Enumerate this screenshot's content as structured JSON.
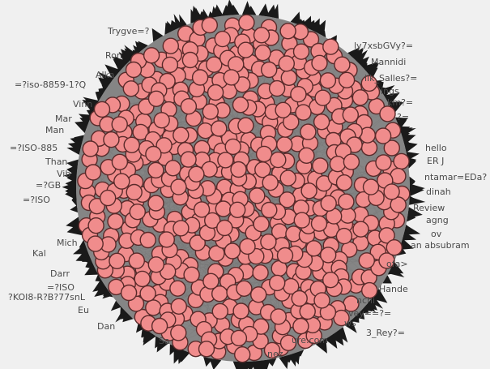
{
  "graph": {
    "title": "",
    "colors": {
      "background": "#f0f0f0",
      "node_fill": "#f08c8c",
      "node_stroke": "#5a2a2a",
      "edge": "#777777",
      "spike": "#1a1a1a",
      "label": "#4a4a4a"
    },
    "labels": [
      "Trygve=?",
      "Ron",
      "Alka",
      "=?iso-8859-1?Q",
      "Vinn",
      "Mar",
      "Man",
      "=?ISO-885",
      "Than",
      "Vib",
      "=?GB",
      "=?ISO",
      "Mich",
      "Kal",
      "Darr",
      "=?ISO",
      "?KOI8-R?B?77snL",
      "Eu",
      "Dan",
      "Sa",
      "ly7xsbGVy?=",
      "Mannidi",
      "iik_Salles?=",
      "ings",
      "km?=",
      "?=",
      "hello",
      "ER J",
      "ntamar=EDa?",
      "dinah",
      "Review",
      "agng",
      "ov",
      "an absubram",
      "ofa>",
      "Hande",
      "nchi",
      "vey==?=",
      "ws",
      "3_Rey?=",
      "ure.com",
      "nez"
    ]
  }
}
